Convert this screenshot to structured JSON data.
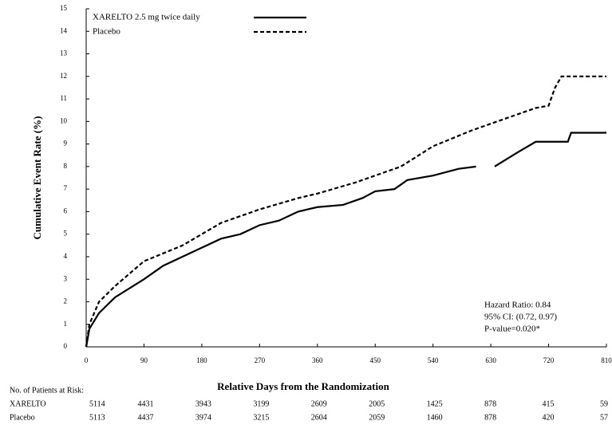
{
  "chart_data": {
    "type": "line",
    "y_axis_label": "Cumulative Event Rate (%)",
    "x_axis_label": "Relative Days from the Randomization",
    "xlim": [
      0,
      810
    ],
    "ylim": [
      0,
      15
    ],
    "xticks": [
      0,
      90,
      180,
      270,
      360,
      450,
      540,
      630,
      720,
      810
    ],
    "yticks": [
      0,
      1,
      2,
      3,
      4,
      5,
      6,
      7,
      8,
      9,
      10,
      11,
      12,
      13,
      14,
      15
    ],
    "series": [
      {
        "name": "XARELTO 2.5 mg twice daily",
        "color": "#000000",
        "dash": false,
        "x": [
          0,
          5,
          20,
          45,
          90,
          120,
          180,
          210,
          240,
          270,
          300,
          330,
          360,
          400,
          430,
          450,
          480,
          500,
          540,
          580,
          607,
          620,
          636,
          670,
          700,
          750,
          755,
          810
        ],
        "values": [
          0,
          0.8,
          1.5,
          2.2,
          3.0,
          3.6,
          4.4,
          4.8,
          5.0,
          5.4,
          5.6,
          6.0,
          6.2,
          6.3,
          6.6,
          6.9,
          7.0,
          7.4,
          7.6,
          7.9,
          8.0,
          null,
          8.0,
          8.6,
          9.1,
          9.1,
          9.5,
          9.5
        ]
      },
      {
        "name": "Placebo",
        "color": "#000000",
        "dash": true,
        "x": [
          0,
          5,
          20,
          45,
          90,
          150,
          180,
          210,
          270,
          330,
          360,
          420,
          450,
          490,
          540,
          600,
          660,
          700,
          720,
          730,
          740,
          810
        ],
        "values": [
          0,
          1.0,
          2.0,
          2.7,
          3.8,
          4.5,
          5.0,
          5.5,
          6.1,
          6.6,
          6.8,
          7.3,
          7.6,
          8.0,
          8.9,
          9.6,
          10.2,
          10.6,
          10.7,
          11.5,
          12.0,
          12.0
        ]
      }
    ],
    "annotations": [
      "Hazard Ratio: 0.84",
      "95% CI: (0.72, 0.97)",
      "P-value=0.020*"
    ],
    "risk_table": {
      "title": "No. of Patients at Risk:",
      "rows": [
        {
          "name": "XARELTO",
          "values": [
            5114,
            4431,
            3943,
            3199,
            2609,
            2005,
            1425,
            878,
            415,
            59
          ]
        },
        {
          "name": "Placebo",
          "values": [
            5113,
            4437,
            3974,
            3215,
            2604,
            2059,
            1460,
            878,
            420,
            57
          ]
        }
      ]
    }
  }
}
